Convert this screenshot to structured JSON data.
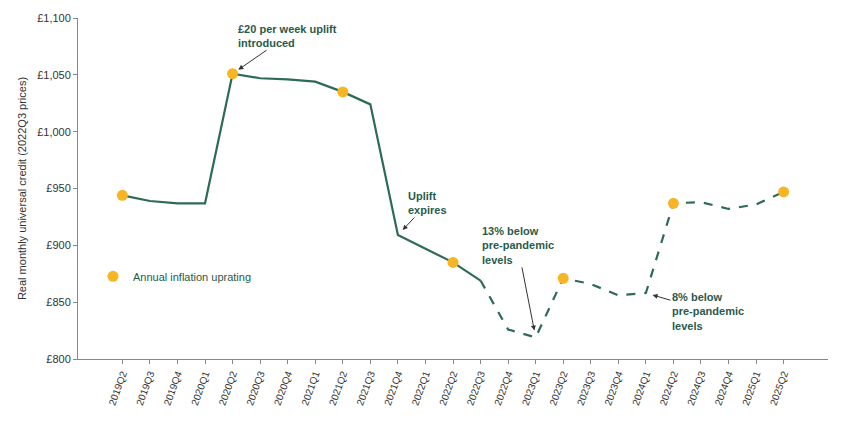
{
  "chart_data": {
    "type": "line",
    "y_label": "Real monthly universal credit (2022Q3 prices)",
    "categories": [
      "2019Q2",
      "2019Q3",
      "2019Q4",
      "2020Q1",
      "2020Q2",
      "2020Q3",
      "2020Q4",
      "2021Q1",
      "2021Q2",
      "2021Q3",
      "2021Q4",
      "2022Q1",
      "2022Q2",
      "2022Q3",
      "2022Q4",
      "2023Q1",
      "2023Q2",
      "2023Q3",
      "2023Q4",
      "2024Q1",
      "2024Q2",
      "2024Q3",
      "2024Q4",
      "2025Q1",
      "2025Q2"
    ],
    "series": [
      {
        "color": "#2e6b55",
        "line_style": "solid",
        "values": [
          944,
          939,
          937,
          937,
          1051,
          1047,
          1046,
          1044,
          1035,
          1024,
          909,
          897,
          885,
          869,
          null,
          null,
          null,
          null,
          null,
          null,
          null,
          null,
          null,
          null,
          null
        ]
      },
      {
        "color": "#2e6b55",
        "line_style": "dashed",
        "values": [
          null,
          null,
          null,
          null,
          null,
          null,
          null,
          null,
          null,
          null,
          null,
          null,
          null,
          869,
          826,
          819,
          871,
          866,
          856,
          858,
          937,
          938,
          932,
          936,
          947
        ]
      },
      {
        "name": "Annual inflation uprating",
        "type": "scatter",
        "marker": "circle",
        "color": "#f5b525",
        "values": [
          944,
          null,
          null,
          null,
          1051,
          null,
          null,
          null,
          1035,
          null,
          null,
          null,
          885,
          null,
          null,
          null,
          871,
          null,
          null,
          null,
          937,
          null,
          null,
          null,
          947
        ]
      }
    ],
    "ylim": [
      800,
      1100
    ],
    "yticks": [
      {
        "value": 800,
        "label": "£800"
      },
      {
        "value": 850,
        "label": "£850"
      },
      {
        "value": 900,
        "label": "£900"
      },
      {
        "value": 950,
        "label": "£950"
      },
      {
        "value": 1000,
        "label": "£1,000"
      },
      {
        "value": 1050,
        "label": "£1,050"
      },
      {
        "value": 1100,
        "label": "£1,100"
      }
    ],
    "grid": false,
    "legend": "lower left",
    "annotations": [
      {
        "text": "£20 per week uplift\nintroduced",
        "x": "2020Q2",
        "y": 1051
      },
      {
        "text": "Uplift\nexpires",
        "x": "2021Q4",
        "y": 909
      },
      {
        "text": "13% below\npre-pandemic\nlevels",
        "x": "2023Q1",
        "y": 819
      },
      {
        "text": "8% below\npre-pandemic\nlevels",
        "x": "2024Q1",
        "y": 858
      }
    ]
  }
}
